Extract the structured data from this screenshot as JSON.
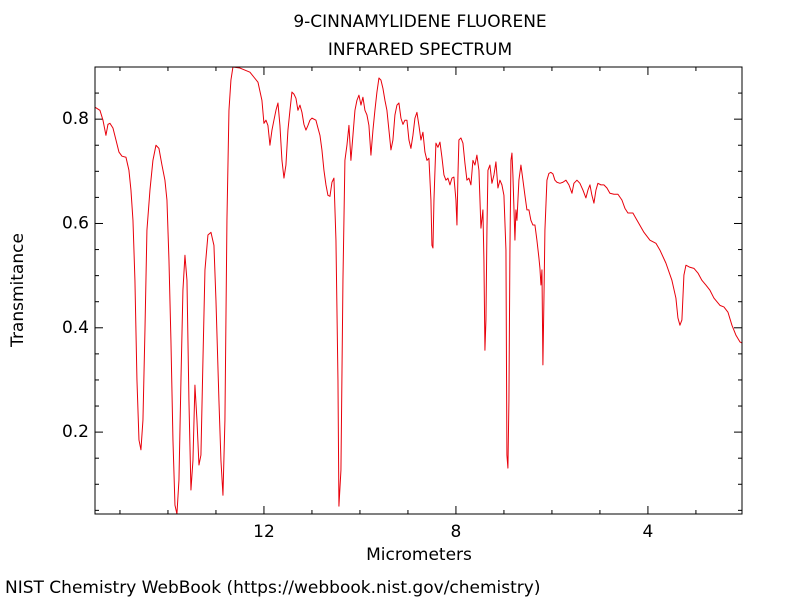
{
  "chart_data": {
    "type": "line",
    "title": "9-CINNAMYLIDENE FLUORENE",
    "subtitle": "INFRARED SPECTRUM",
    "x_label": "Micrometers",
    "y_label": "Transmitance",
    "source": "NIST Chemistry WebBook (https://webbook.nist.gov/chemistry)",
    "color": "#e8000b",
    "xlim": [
      15.52,
      2.04
    ],
    "ylim": [
      0.043,
      0.9
    ],
    "xticks": [
      12,
      8,
      4
    ],
    "yticks": [
      0.2,
      0.4,
      0.6,
      0.8
    ],
    "x": [
      15.521,
      15.417,
      15.354,
      15.292,
      15.25,
      15.208,
      15.146,
      15.083,
      15.021,
      14.958,
      14.875,
      14.813,
      14.771,
      14.729,
      14.688,
      14.646,
      14.604,
      14.563,
      14.521,
      14.479,
      14.438,
      14.375,
      14.313,
      14.25,
      14.188,
      14.125,
      14.063,
      14.021,
      13.979,
      13.938,
      13.896,
      13.854,
      13.813,
      13.771,
      13.729,
      13.688,
      13.646,
      13.604,
      13.563,
      13.521,
      13.479,
      13.438,
      13.396,
      13.354,
      13.313,
      13.271,
      13.229,
      13.167,
      13.104,
      13.042,
      13.0,
      12.938,
      12.896,
      12.854,
      12.813,
      12.771,
      12.729,
      12.688,
      12.646,
      12.5,
      12.292,
      12.125,
      12.042,
      12.0,
      11.958,
      11.917,
      11.875,
      11.833,
      11.792,
      11.75,
      11.708,
      11.667,
      11.625,
      11.583,
      11.542,
      11.5,
      11.458,
      11.417,
      11.375,
      11.333,
      11.292,
      11.25,
      11.208,
      11.167,
      11.125,
      11.083,
      11.042,
      11.0,
      10.917,
      10.875,
      10.833,
      10.792,
      10.75,
      10.708,
      10.667,
      10.625,
      10.583,
      10.542,
      10.5,
      10.458,
      10.438,
      10.396,
      10.354,
      10.313,
      10.271,
      10.229,
      10.188,
      10.146,
      10.104,
      10.063,
      10.021,
      9.979,
      9.938,
      9.896,
      9.854,
      9.813,
      9.771,
      9.729,
      9.688,
      9.646,
      9.604,
      9.563,
      9.521,
      9.479,
      9.438,
      9.396,
      9.354,
      9.313,
      9.271,
      9.229,
      9.188,
      9.146,
      9.104,
      9.063,
      9.021,
      8.979,
      8.938,
      8.896,
      8.854,
      8.813,
      8.771,
      8.729,
      8.688,
      8.646,
      8.604,
      8.563,
      8.521,
      8.5,
      8.479,
      8.458,
      8.417,
      8.375,
      8.333,
      8.292,
      8.25,
      8.208,
      8.167,
      8.125,
      8.083,
      8.042,
      8.0,
      7.979,
      7.958,
      7.938,
      7.896,
      7.854,
      7.813,
      7.771,
      7.729,
      7.688,
      7.646,
      7.604,
      7.563,
      7.521,
      7.479,
      7.438,
      7.417,
      7.396,
      7.375,
      7.354,
      7.333,
      7.292,
      7.25,
      7.208,
      7.167,
      7.125,
      7.083,
      7.042,
      7.0,
      6.958,
      6.938,
      6.917,
      6.896,
      6.875,
      6.854,
      6.833,
      6.813,
      6.771,
      6.75,
      6.729,
      6.688,
      6.646,
      6.604,
      6.563,
      6.521,
      6.479,
      6.438,
      6.396,
      6.354,
      6.313,
      6.271,
      6.25,
      6.229,
      6.208,
      6.188,
      6.167,
      6.146,
      6.104,
      6.063,
      6.021,
      5.979,
      5.938,
      5.896,
      5.833,
      5.771,
      5.708,
      5.646,
      5.583,
      5.542,
      5.479,
      5.417,
      5.354,
      5.292,
      5.25,
      5.208,
      5.167,
      5.125,
      5.083,
      5.042,
      4.979,
      4.917,
      4.854,
      4.792,
      4.708,
      4.625,
      4.542,
      4.479,
      4.417,
      4.313,
      4.208,
      4.083,
      3.958,
      3.833,
      3.75,
      3.625,
      3.5,
      3.417,
      3.375,
      3.333,
      3.292,
      3.25,
      3.208,
      3.125,
      3.042,
      2.958,
      2.875,
      2.792,
      2.708,
      2.625,
      2.5,
      2.417,
      2.333,
      2.25,
      2.167,
      2.083,
      2.042
    ],
    "values": [
      0.823,
      0.817,
      0.798,
      0.769,
      0.79,
      0.792,
      0.783,
      0.76,
      0.737,
      0.729,
      0.727,
      0.702,
      0.664,
      0.606,
      0.491,
      0.3,
      0.185,
      0.166,
      0.223,
      0.396,
      0.587,
      0.664,
      0.721,
      0.75,
      0.744,
      0.712,
      0.683,
      0.645,
      0.53,
      0.376,
      0.185,
      0.06,
      0.043,
      0.108,
      0.3,
      0.472,
      0.539,
      0.491,
      0.261,
      0.089,
      0.146,
      0.29,
      0.223,
      0.137,
      0.156,
      0.338,
      0.511,
      0.578,
      0.583,
      0.558,
      0.453,
      0.261,
      0.146,
      0.079,
      0.223,
      0.606,
      0.817,
      0.875,
      0.9,
      0.898,
      0.89,
      0.871,
      0.836,
      0.792,
      0.798,
      0.788,
      0.75,
      0.779,
      0.798,
      0.817,
      0.831,
      0.788,
      0.721,
      0.687,
      0.712,
      0.779,
      0.817,
      0.852,
      0.848,
      0.84,
      0.817,
      0.827,
      0.813,
      0.79,
      0.779,
      0.788,
      0.798,
      0.802,
      0.798,
      0.783,
      0.769,
      0.741,
      0.702,
      0.674,
      0.654,
      0.652,
      0.679,
      0.687,
      0.568,
      0.3,
      0.058,
      0.127,
      0.491,
      0.721,
      0.75,
      0.788,
      0.721,
      0.769,
      0.817,
      0.836,
      0.846,
      0.827,
      0.842,
      0.817,
      0.808,
      0.788,
      0.731,
      0.779,
      0.817,
      0.852,
      0.879,
      0.875,
      0.859,
      0.836,
      0.817,
      0.779,
      0.741,
      0.76,
      0.808,
      0.827,
      0.831,
      0.802,
      0.79,
      0.798,
      0.798,
      0.76,
      0.744,
      0.769,
      0.802,
      0.813,
      0.788,
      0.76,
      0.775,
      0.737,
      0.721,
      0.725,
      0.645,
      0.558,
      0.553,
      0.645,
      0.754,
      0.746,
      0.756,
      0.727,
      0.693,
      0.683,
      0.687,
      0.674,
      0.687,
      0.689,
      0.645,
      0.597,
      0.693,
      0.76,
      0.764,
      0.754,
      0.716,
      0.683,
      0.687,
      0.674,
      0.721,
      0.712,
      0.731,
      0.702,
      0.591,
      0.626,
      0.53,
      0.357,
      0.415,
      0.587,
      0.702,
      0.712,
      0.677,
      0.693,
      0.718,
      0.668,
      0.683,
      0.674,
      0.654,
      0.549,
      0.156,
      0.131,
      0.261,
      0.549,
      0.721,
      0.735,
      0.693,
      0.568,
      0.626,
      0.606,
      0.683,
      0.712,
      0.683,
      0.654,
      0.626,
      0.626,
      0.606,
      0.597,
      0.597,
      0.568,
      0.534,
      0.514,
      0.482,
      0.511,
      0.329,
      0.453,
      0.587,
      0.683,
      0.696,
      0.698,
      0.695,
      0.683,
      0.679,
      0.677,
      0.679,
      0.683,
      0.674,
      0.658,
      0.677,
      0.683,
      0.677,
      0.664,
      0.649,
      0.664,
      0.674,
      0.654,
      0.639,
      0.664,
      0.677,
      0.674,
      0.674,
      0.668,
      0.658,
      0.656,
      0.656,
      0.645,
      0.629,
      0.62,
      0.62,
      0.603,
      0.583,
      0.568,
      0.562,
      0.549,
      0.524,
      0.491,
      0.457,
      0.419,
      0.405,
      0.415,
      0.501,
      0.52,
      0.516,
      0.514,
      0.505,
      0.491,
      0.482,
      0.472,
      0.457,
      0.443,
      0.44,
      0.43,
      0.405,
      0.386,
      0.373,
      0.371
    ]
  }
}
